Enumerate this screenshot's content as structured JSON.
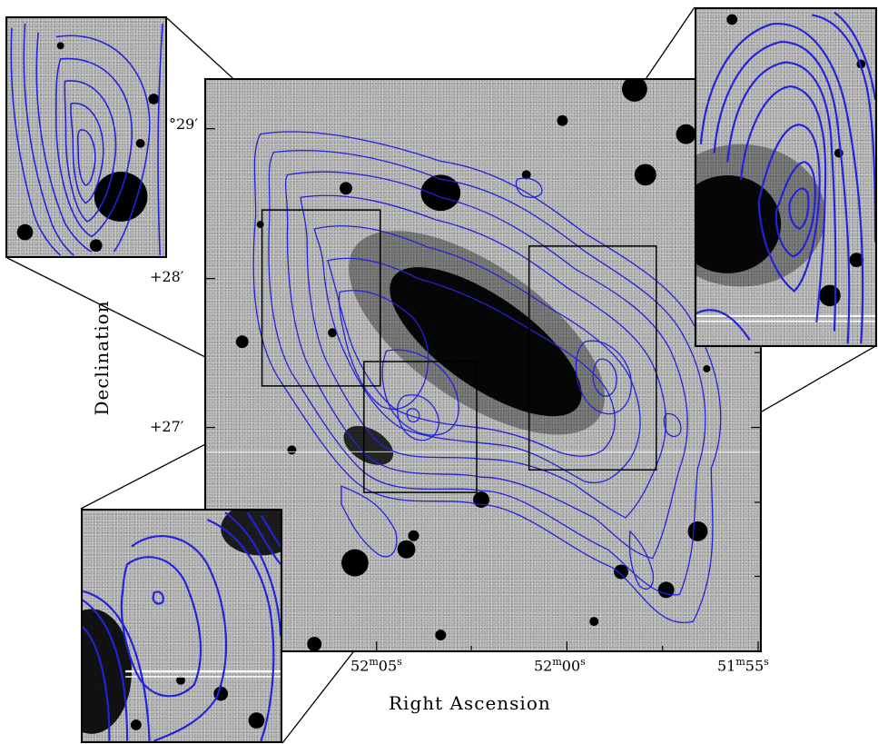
{
  "figure": {
    "x_axis_label": "Right Ascension",
    "y_axis_label": "Declination",
    "x_ticks": [
      {
        "major": "52",
        "major_unit": "m",
        "minor": "05",
        "minor_unit": "s"
      },
      {
        "major": "52",
        "major_unit": "m",
        "minor": "00",
        "minor_unit": "s"
      },
      {
        "major": "51",
        "major_unit": "m",
        "minor": "55",
        "minor_unit": "s"
      }
    ],
    "y_ticks": [
      "°29′",
      "+28′",
      "+27′"
    ],
    "colors": {
      "contour": "#2222dd",
      "sky_background": "#b9b9b9",
      "frame": "#000000",
      "source": "#000000"
    },
    "insets": [
      "top-left-zoom",
      "top-right-zoom",
      "bottom-left-zoom"
    ]
  }
}
